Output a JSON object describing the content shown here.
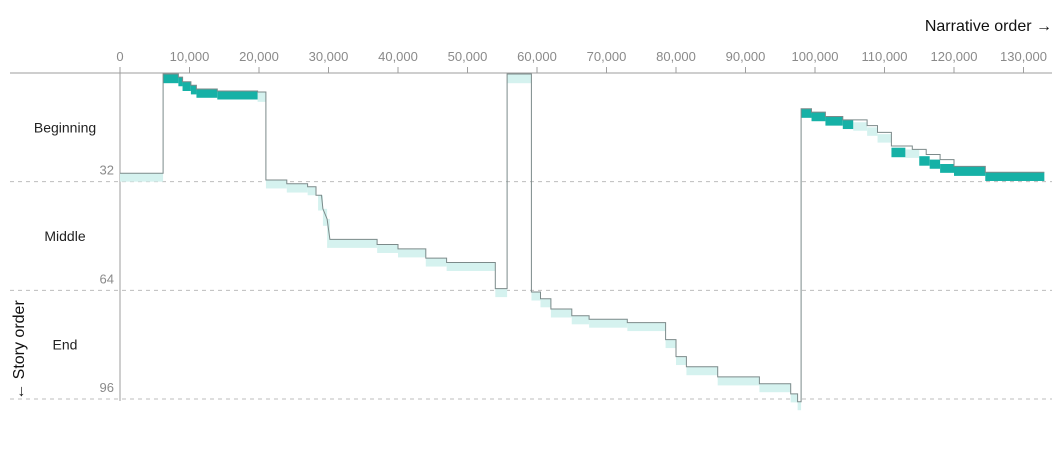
{
  "chart_data": {
    "type": "line",
    "x_axis": {
      "label": "Narrative order →",
      "range": [
        0,
        133000
      ],
      "ticks": [
        0,
        10000,
        20000,
        30000,
        40000,
        50000,
        60000,
        70000,
        80000,
        90000,
        100000,
        110000,
        120000,
        130000
      ],
      "tick_labels": [
        "0",
        "10,000",
        "20,000",
        "30,000",
        "40,000",
        "50,000",
        "60,000",
        "70,000",
        "80,000",
        "90,000",
        "100,000",
        "110,000",
        "120,000",
        "130,000"
      ],
      "position": "top"
    },
    "y_axis": {
      "label": "← Story order",
      "range": [
        0,
        97
      ],
      "inverted": true,
      "ticks": [
        32,
        64,
        96
      ],
      "tick_labels": [
        "32",
        "64",
        "96"
      ],
      "grid": "dashed"
    },
    "sections": [
      "Beginning",
      "Middle",
      "End"
    ],
    "colors": {
      "line": "#7c8a8a",
      "band_dark": "#16b1a6",
      "band_light": "#d5f2ef",
      "grid": "#bdbdbd",
      "tick_text": "#8a8a8a"
    },
    "series": [
      {
        "points": [
          [
            0,
            29.5
          ],
          [
            6200,
            29.5
          ],
          [
            6200,
            0.3
          ],
          [
            8400,
            0.3
          ],
          [
            8400,
            1.2
          ],
          [
            9000,
            1.2
          ],
          [
            9000,
            2.6
          ],
          [
            10200,
            2.6
          ],
          [
            10200,
            3.6
          ],
          [
            11000,
            3.6
          ],
          [
            11000,
            4.7
          ],
          [
            14000,
            4.7
          ],
          [
            14000,
            5.3
          ],
          [
            19800,
            5.3
          ],
          [
            19800,
            5.6
          ],
          [
            21000,
            5.6
          ],
          [
            21000,
            31.5
          ],
          [
            24000,
            31.5
          ],
          [
            24000,
            32.6
          ],
          [
            27000,
            32.6
          ],
          [
            27000,
            33.5
          ],
          [
            28200,
            33.5
          ],
          [
            28200,
            36
          ],
          [
            29000,
            36
          ],
          [
            29200,
            40
          ],
          [
            29800,
            43
          ],
          [
            30200,
            49
          ],
          [
            32000,
            49
          ],
          [
            37000,
            49
          ],
          [
            37000,
            50.5
          ],
          [
            40000,
            50.5
          ],
          [
            40000,
            51.8
          ],
          [
            44000,
            51.8
          ],
          [
            44000,
            54.5
          ],
          [
            47000,
            54.5
          ],
          [
            47000,
            55.8
          ],
          [
            54000,
            55.8
          ],
          [
            54000,
            63.5
          ],
          [
            55700,
            63.5
          ],
          [
            55700,
            0.3
          ],
          [
            59200,
            0.3
          ],
          [
            59200,
            64.5
          ],
          [
            60500,
            64.5
          ],
          [
            60500,
            66.5
          ],
          [
            62000,
            66.5
          ],
          [
            62000,
            69.5
          ],
          [
            65000,
            69.5
          ],
          [
            65000,
            71.5
          ],
          [
            67500,
            71.5
          ],
          [
            67500,
            72.5
          ],
          [
            73000,
            72.5
          ],
          [
            73000,
            73.5
          ],
          [
            78500,
            73.5
          ],
          [
            78500,
            78.5
          ],
          [
            80000,
            78.5
          ],
          [
            80000,
            83.5
          ],
          [
            81500,
            83.5
          ],
          [
            81500,
            86.5
          ],
          [
            86000,
            86.5
          ],
          [
            86000,
            89.5
          ],
          [
            92000,
            89.5
          ],
          [
            92000,
            91.5
          ],
          [
            96500,
            91.5
          ],
          [
            96500,
            94.5
          ],
          [
            97500,
            94.5
          ],
          [
            97500,
            96.8
          ],
          [
            98000,
            96.8
          ],
          [
            98000,
            10.5
          ],
          [
            99500,
            10.5
          ],
          [
            99500,
            11.5
          ],
          [
            101500,
            11.5
          ],
          [
            101500,
            12.8
          ],
          [
            104000,
            12.8
          ],
          [
            104000,
            13.8
          ],
          [
            107500,
            13.8
          ],
          [
            107500,
            15.5
          ],
          [
            109000,
            15.5
          ],
          [
            109000,
            17.5
          ],
          [
            111000,
            17.5
          ],
          [
            111000,
            21.5
          ],
          [
            114000,
            21.5
          ],
          [
            114000,
            22.5
          ],
          [
            116000,
            22.5
          ],
          [
            116000,
            24
          ],
          [
            118000,
            24
          ],
          [
            118000,
            25.5
          ],
          [
            120000,
            25.5
          ],
          [
            120000,
            27.5
          ],
          [
            124500,
            27.5
          ],
          [
            124500,
            29.2
          ],
          [
            133000,
            29.2
          ]
        ]
      }
    ],
    "bands_dark": [
      [
        6200,
        0.3,
        8400,
        3.0
      ],
      [
        8400,
        1.2,
        9000,
        3.9
      ],
      [
        9000,
        2.6,
        10200,
        5.3
      ],
      [
        10200,
        3.6,
        11000,
        6.3
      ],
      [
        11000,
        4.7,
        14000,
        7.3
      ],
      [
        14000,
        5.3,
        19800,
        7.8
      ],
      [
        98000,
        10.5,
        99500,
        13.2
      ],
      [
        99500,
        11.5,
        101500,
        14.2
      ],
      [
        101500,
        12.8,
        104000,
        15.5
      ],
      [
        104000,
        13.8,
        105500,
        16.5
      ],
      [
        111000,
        22.0,
        113000,
        24.8
      ],
      [
        115000,
        24.5,
        116500,
        27.3
      ],
      [
        116500,
        25.5,
        118000,
        28.2
      ],
      [
        118000,
        26.8,
        120000,
        29.4
      ],
      [
        120000,
        27.5,
        124500,
        30.3
      ],
      [
        124500,
        29.2,
        133000,
        31.8
      ]
    ],
    "bands_light": [
      [
        0,
        29.5,
        6200,
        32.0
      ],
      [
        19800,
        5.6,
        21000,
        8.5
      ],
      [
        21000,
        31.5,
        24000,
        34.0
      ],
      [
        24000,
        32.6,
        27000,
        35.2
      ],
      [
        27000,
        33.5,
        28200,
        36.0
      ],
      [
        28500,
        36.0,
        29200,
        40.5
      ],
      [
        29200,
        40.0,
        29800,
        45.0
      ],
      [
        29800,
        43.0,
        30200,
        51.5
      ],
      [
        30200,
        49.0,
        37000,
        51.5
      ],
      [
        37000,
        50.5,
        40000,
        53.0
      ],
      [
        40000,
        51.8,
        44000,
        54.3
      ],
      [
        44000,
        54.5,
        47000,
        57.0
      ],
      [
        47000,
        55.8,
        54000,
        58.3
      ],
      [
        54000,
        63.5,
        55700,
        66.0
      ],
      [
        55700,
        0.3,
        59200,
        3.0
      ],
      [
        59200,
        64.5,
        60500,
        67.0
      ],
      [
        60500,
        66.5,
        62000,
        69.0
      ],
      [
        62000,
        69.5,
        65000,
        72.0
      ],
      [
        65000,
        71.5,
        67500,
        74.0
      ],
      [
        67500,
        72.5,
        73000,
        75.0
      ],
      [
        73000,
        73.5,
        78500,
        76.0
      ],
      [
        78500,
        78.5,
        80000,
        81.0
      ],
      [
        80000,
        83.5,
        81500,
        86.0
      ],
      [
        81500,
        86.5,
        86000,
        89.0
      ],
      [
        86000,
        89.5,
        92000,
        92.0
      ],
      [
        92000,
        91.5,
        96500,
        94.0
      ],
      [
        96500,
        94.5,
        97500,
        97.0
      ],
      [
        97500,
        96.8,
        98000,
        99.3
      ],
      [
        105500,
        14.5,
        107500,
        17.0
      ],
      [
        107500,
        16.0,
        109000,
        18.5
      ],
      [
        109000,
        18.0,
        111000,
        20.5
      ],
      [
        113000,
        22.5,
        115000,
        25.0
      ]
    ]
  }
}
